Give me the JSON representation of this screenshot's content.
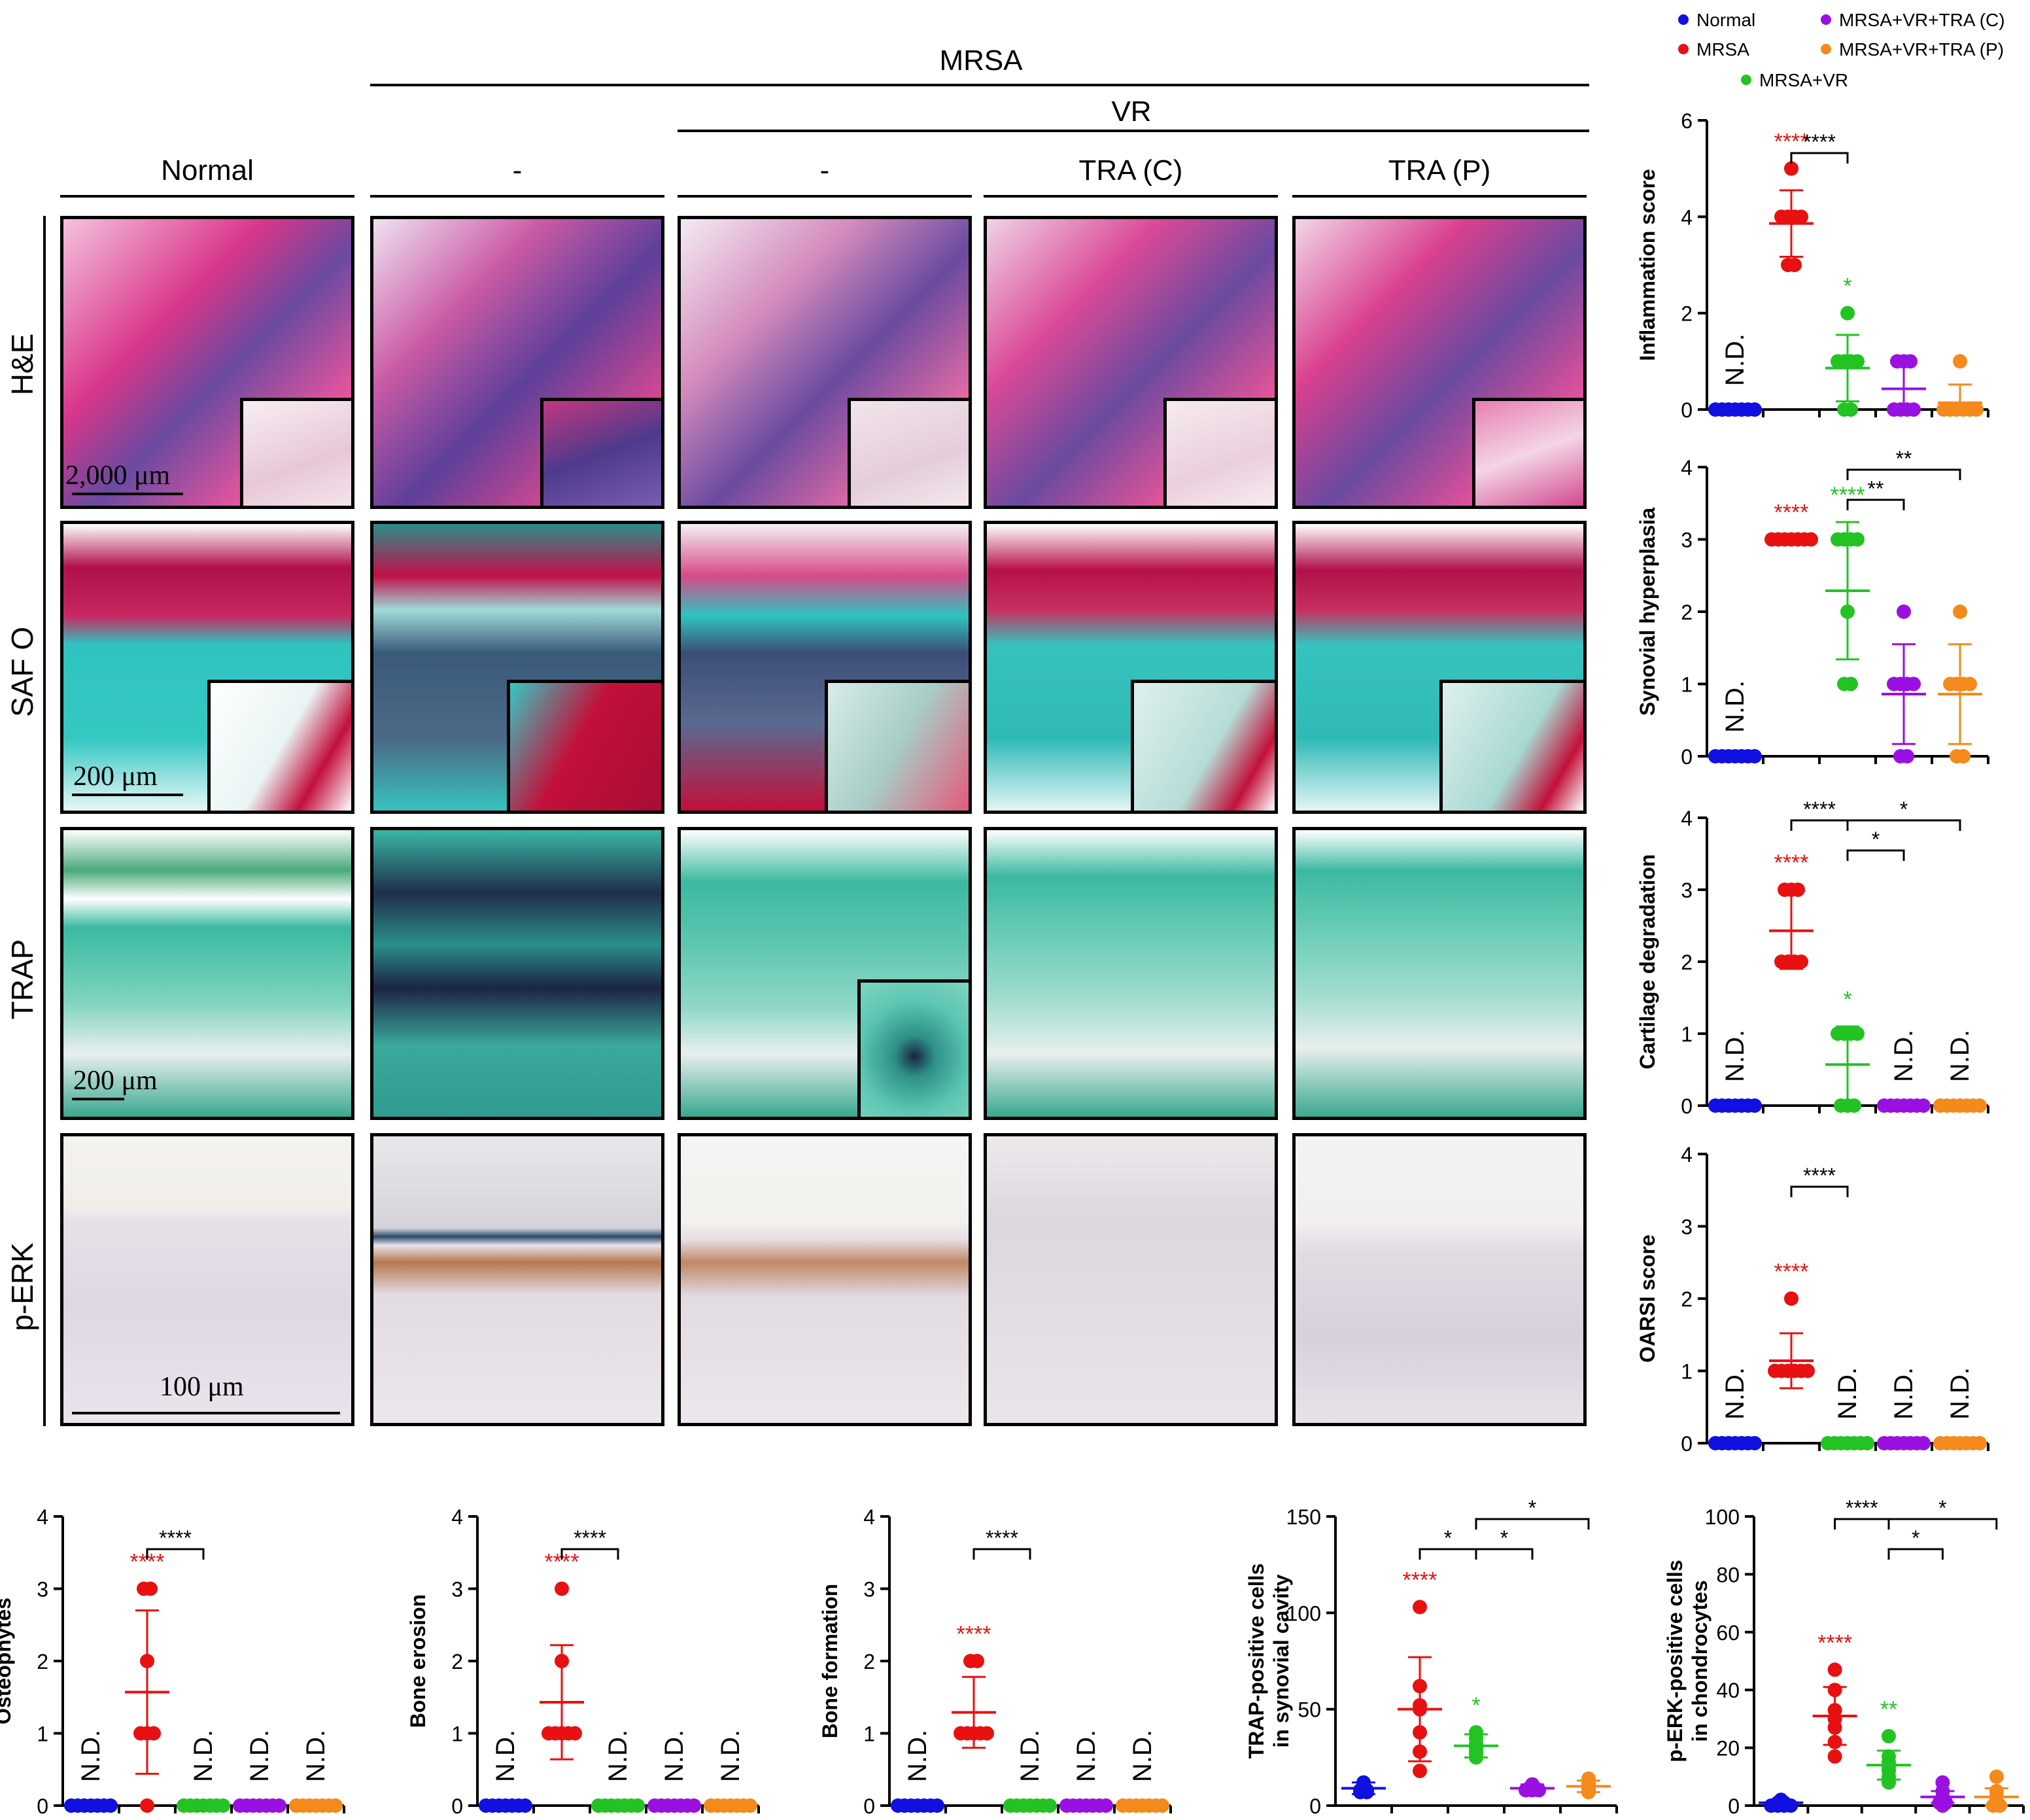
{
  "header": {
    "mrsa": "MRSA",
    "vr": "VR",
    "columns": [
      "Normal",
      "-",
      "-",
      "TRA (C)",
      "TRA (P)"
    ]
  },
  "rows": [
    "H&E",
    "SAF O",
    "TRAP",
    "p-ERK"
  ],
  "scale_bars": [
    "2,000 μm",
    "200 μm",
    "200 μm",
    "100 μm"
  ],
  "legend": [
    {
      "label": "Normal",
      "color": "#1010e0"
    },
    {
      "label": "MRSA",
      "color": "#e81010"
    },
    {
      "label": "MRSA+VR",
      "color": "#22c322"
    },
    {
      "label": "MRSA+VR+TRA (C)",
      "color": "#9a10e0"
    },
    {
      "label": "MRSA+VR+TRA (P)",
      "color": "#f48a1c"
    }
  ],
  "chart_data": [
    {
      "type": "scatter",
      "ylabel": "Inflammation score",
      "ylim": [
        0,
        6
      ],
      "yticks": [
        0,
        2,
        4,
        6
      ],
      "nd": [
        true,
        false,
        false,
        false,
        false
      ],
      "means": [
        0,
        3.86,
        0.86,
        0.43,
        0.14
      ],
      "sds": [
        0,
        0.69,
        0.69,
        0.53,
        0.38
      ],
      "points": [
        [
          0,
          0,
          0,
          0,
          0,
          0,
          0
        ],
        [
          5,
          4,
          4,
          4,
          4,
          3,
          3
        ],
        [
          2,
          1,
          1,
          1,
          1,
          0,
          0
        ],
        [
          1,
          1,
          1,
          0,
          0,
          0,
          0
        ],
        [
          1,
          0,
          0,
          0,
          0,
          0,
          0
        ]
      ],
      "stars": [
        {
          "g": 1,
          "t": "****",
          "c": "#e81010"
        },
        {
          "g": 2,
          "t": "*",
          "c": "#22c322"
        }
      ],
      "brackets": [
        {
          "a": 1,
          "b": 2,
          "t": "****",
          "lvl": 0
        }
      ]
    },
    {
      "type": "scatter",
      "ylabel": "Synovial hyperplasia",
      "ylim": [
        0,
        4
      ],
      "yticks": [
        0,
        1,
        2,
        3,
        4
      ],
      "nd": [
        true,
        false,
        false,
        false,
        false
      ],
      "means": [
        0,
        3,
        2.29,
        0.86,
        0.86
      ],
      "sds": [
        0,
        0,
        0.95,
        0.69,
        0.69
      ],
      "points": [
        [
          0,
          0,
          0,
          0,
          0,
          0,
          0
        ],
        [
          3,
          3,
          3,
          3,
          3,
          3,
          3
        ],
        [
          3,
          3,
          3,
          3,
          2,
          1,
          1
        ],
        [
          2,
          1,
          1,
          1,
          1,
          0,
          0
        ],
        [
          2,
          1,
          1,
          1,
          1,
          0,
          0
        ]
      ],
      "stars": [
        {
          "g": 1,
          "t": "****",
          "c": "#e81010"
        },
        {
          "g": 2,
          "t": "****",
          "c": "#22c322"
        }
      ],
      "brackets": [
        {
          "a": 2,
          "b": 3,
          "t": "**",
          "lvl": 0
        },
        {
          "a": 2,
          "b": 4,
          "t": "**",
          "lvl": 1
        }
      ]
    },
    {
      "type": "scatter",
      "ylabel": "Cartilage degradation",
      "ylim": [
        0,
        4
      ],
      "yticks": [
        0,
        1,
        2,
        3,
        4
      ],
      "nd": [
        true,
        false,
        false,
        true,
        true
      ],
      "means": [
        0,
        2.43,
        0.57,
        0,
        0
      ],
      "sds": [
        0,
        0.53,
        0.53,
        0,
        0
      ],
      "points": [
        [
          0,
          0,
          0,
          0,
          0,
          0,
          0
        ],
        [
          3,
          3,
          3,
          2,
          2,
          2,
          2
        ],
        [
          1,
          1,
          1,
          1,
          0,
          0,
          0
        ],
        [
          0,
          0,
          0,
          0,
          0,
          0,
          0
        ],
        [
          0,
          0,
          0,
          0,
          0,
          0,
          0
        ]
      ],
      "stars": [
        {
          "g": 1,
          "t": "****",
          "c": "#e81010"
        },
        {
          "g": 2,
          "t": "*",
          "c": "#22c322"
        }
      ],
      "brackets": [
        {
          "a": 1,
          "b": 2,
          "t": "****",
          "lvl": 1
        },
        {
          "a": 2,
          "b": 3,
          "t": "*",
          "lvl": 0
        },
        {
          "a": 2,
          "b": 4,
          "t": "*",
          "lvl": 1
        }
      ]
    },
    {
      "type": "scatter",
      "ylabel": "OARSI score",
      "ylim": [
        0,
        4
      ],
      "yticks": [
        0,
        1,
        2,
        3,
        4
      ],
      "nd": [
        true,
        false,
        true,
        true,
        true
      ],
      "means": [
        0,
        1.14,
        0,
        0,
        0
      ],
      "sds": [
        0,
        0.38,
        0,
        0,
        0
      ],
      "points": [
        [
          0,
          0,
          0,
          0,
          0,
          0,
          0
        ],
        [
          2,
          1,
          1,
          1,
          1,
          1,
          1
        ],
        [
          0,
          0,
          0,
          0,
          0,
          0,
          0
        ],
        [
          0,
          0,
          0,
          0,
          0,
          0,
          0
        ],
        [
          0,
          0,
          0,
          0,
          0,
          0,
          0
        ]
      ],
      "stars": [
        {
          "g": 1,
          "t": "****",
          "c": "#e81010"
        }
      ],
      "brackets": [
        {
          "a": 1,
          "b": 2,
          "t": "****",
          "lvl": 0
        }
      ]
    },
    {
      "type": "scatter",
      "ylabel": "Osteophytes",
      "ylim": [
        0,
        4
      ],
      "yticks": [
        0,
        1,
        2,
        3,
        4
      ],
      "nd": [
        true,
        false,
        true,
        true,
        true
      ],
      "means": [
        0,
        1.57,
        0,
        0,
        0
      ],
      "sds": [
        0,
        1.13,
        0,
        0,
        0
      ],
      "points": [
        [
          0,
          0,
          0,
          0,
          0,
          0,
          0
        ],
        [
          3,
          3,
          2,
          1,
          1,
          1,
          0
        ],
        [
          0,
          0,
          0,
          0,
          0,
          0,
          0
        ],
        [
          0,
          0,
          0,
          0,
          0,
          0,
          0
        ],
        [
          0,
          0,
          0,
          0,
          0,
          0,
          0
        ]
      ],
      "stars": [
        {
          "g": 1,
          "t": "****",
          "c": "#e81010"
        }
      ],
      "brackets": [
        {
          "a": 1,
          "b": 2,
          "t": "****",
          "lvl": 0
        }
      ]
    },
    {
      "type": "scatter",
      "ylabel": "Bone erosion",
      "ylim": [
        0,
        4
      ],
      "yticks": [
        0,
        1,
        2,
        3,
        4
      ],
      "nd": [
        true,
        false,
        true,
        true,
        true
      ],
      "means": [
        0,
        1.43,
        0,
        0,
        0
      ],
      "sds": [
        0,
        0.79,
        0,
        0,
        0
      ],
      "points": [
        [
          0,
          0,
          0,
          0,
          0,
          0,
          0
        ],
        [
          3,
          2,
          1,
          1,
          1,
          1,
          1
        ],
        [
          0,
          0,
          0,
          0,
          0,
          0,
          0
        ],
        [
          0,
          0,
          0,
          0,
          0,
          0,
          0
        ],
        [
          0,
          0,
          0,
          0,
          0,
          0,
          0
        ]
      ],
      "stars": [
        {
          "g": 1,
          "t": "****",
          "c": "#e81010"
        }
      ],
      "brackets": [
        {
          "a": 1,
          "b": 2,
          "t": "****",
          "lvl": 0
        }
      ]
    },
    {
      "type": "scatter",
      "ylabel": "Bone formation",
      "ylim": [
        0,
        4
      ],
      "yticks": [
        0,
        1,
        2,
        3,
        4
      ],
      "nd": [
        true,
        false,
        true,
        true,
        true
      ],
      "means": [
        0,
        1.29,
        0,
        0,
        0
      ],
      "sds": [
        0,
        0.49,
        0,
        0,
        0
      ],
      "points": [
        [
          0,
          0,
          0,
          0,
          0,
          0,
          0
        ],
        [
          2,
          2,
          1,
          1,
          1,
          1,
          1
        ],
        [
          0,
          0,
          0,
          0,
          0,
          0,
          0
        ],
        [
          0,
          0,
          0,
          0,
          0,
          0,
          0
        ],
        [
          0,
          0,
          0,
          0,
          0,
          0,
          0
        ]
      ],
      "stars": [
        {
          "g": 1,
          "t": "****",
          "c": "#e81010"
        }
      ],
      "brackets": [
        {
          "a": 1,
          "b": 2,
          "t": "****",
          "lvl": 0
        }
      ]
    },
    {
      "type": "scatter",
      "ylabel": "TRAP-positive cells",
      "ylabel2": "in synovial cavity",
      "ylim": [
        0,
        150
      ],
      "yticks": [
        0,
        50,
        100,
        150
      ],
      "nd": [
        false,
        false,
        false,
        false,
        false
      ],
      "means": [
        9,
        50,
        31,
        9,
        10
      ],
      "sds": [
        3,
        27,
        6,
        2,
        3
      ],
      "points": [
        [
          12,
          10,
          9,
          8,
          8,
          7,
          7
        ],
        [
          103,
          62,
          52,
          50,
          38,
          28,
          18
        ],
        [
          38,
          35,
          32,
          30,
          28,
          27,
          25
        ],
        [
          11,
          10,
          9,
          9,
          8,
          8,
          8
        ],
        [
          14,
          12,
          11,
          10,
          9,
          8,
          7
        ]
      ],
      "stars": [
        {
          "g": 1,
          "t": "****",
          "c": "#e81010"
        },
        {
          "g": 2,
          "t": "*",
          "c": "#22c322"
        }
      ],
      "brackets": [
        {
          "a": 1,
          "b": 2,
          "t": "*",
          "lvl": 0
        },
        {
          "a": 2,
          "b": 3,
          "t": "*",
          "lvl": 0
        },
        {
          "a": 2,
          "b": 4,
          "t": "*",
          "lvl": 1
        }
      ]
    },
    {
      "type": "scatter",
      "ylabel": "p-ERK-positive cells",
      "ylabel2": "in chondrocytes",
      "ylim": [
        0,
        100
      ],
      "yticks": [
        0,
        20,
        40,
        60,
        80,
        100
      ],
      "nd": [
        false,
        false,
        false,
        false,
        false
      ],
      "means": [
        1,
        31,
        14,
        3,
        3
      ],
      "sds": [
        1,
        10,
        5,
        2,
        3
      ],
      "points": [
        [
          2,
          1,
          1,
          0,
          0,
          0,
          0
        ],
        [
          47,
          40,
          33,
          30,
          27,
          22,
          17
        ],
        [
          24,
          17,
          15,
          13,
          12,
          10,
          8
        ],
        [
          8,
          5,
          3,
          2,
          1,
          1,
          0
        ],
        [
          10,
          5,
          3,
          2,
          1,
          0,
          0
        ]
      ],
      "stars": [
        {
          "g": 1,
          "t": "****",
          "c": "#e81010"
        },
        {
          "g": 2,
          "t": "**",
          "c": "#22c322"
        }
      ],
      "brackets": [
        {
          "a": 1,
          "b": 2,
          "t": "****",
          "lvl": 1
        },
        {
          "a": 2,
          "b": 3,
          "t": "*",
          "lvl": 0
        },
        {
          "a": 2,
          "b": 4,
          "t": "*",
          "lvl": 1
        }
      ]
    }
  ],
  "nd_label": "N.D."
}
